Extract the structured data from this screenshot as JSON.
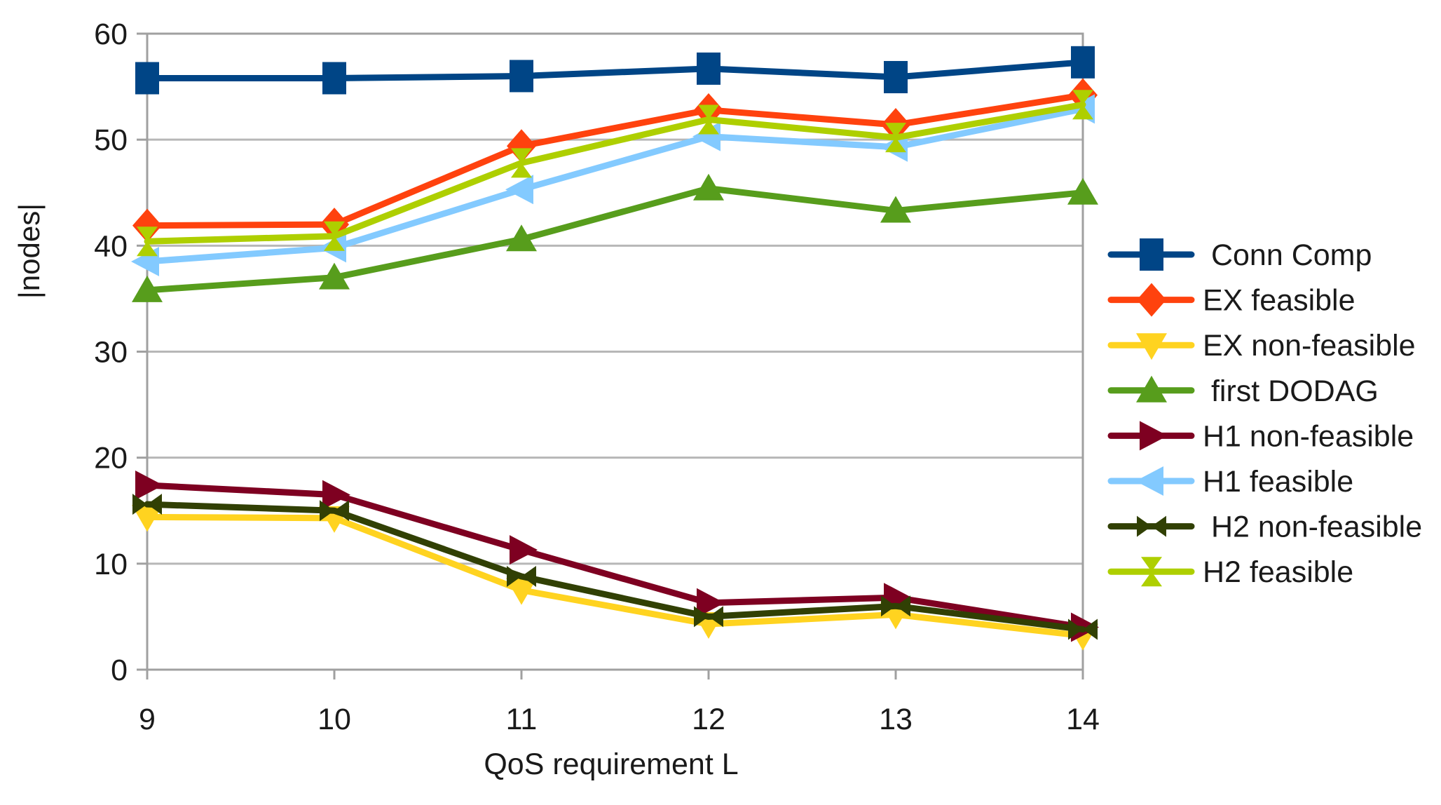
{
  "chart_data": {
    "type": "line",
    "title": "",
    "xlabel": "QoS requirement L",
    "ylabel": "|nodes|",
    "x": [
      9,
      10,
      11,
      12,
      13,
      14
    ],
    "x_tick_labels": [
      "9",
      "10",
      "11",
      "12",
      "13",
      "14"
    ],
    "y_ticks": [
      0,
      10,
      20,
      30,
      40,
      50,
      60
    ],
    "xlim": [
      9,
      14
    ],
    "ylim": [
      0,
      60
    ],
    "grid": "horizontal",
    "legend_position": "right",
    "series": [
      {
        "name": " Conn Comp",
        "color": "#004586",
        "marker": "square",
        "values": [
          55.8,
          55.8,
          56.0,
          56.7,
          55.9,
          57.3
        ]
      },
      {
        "name": "EX feasible",
        "color": "#FF420E",
        "marker": "diamond",
        "values": [
          41.9,
          42.0,
          49.4,
          52.8,
          51.4,
          54.2
        ]
      },
      {
        "name": "EX non-feasible",
        "color": "#FFD320",
        "marker": "triangle-down",
        "values": [
          14.4,
          14.3,
          7.5,
          4.3,
          5.2,
          3.2
        ]
      },
      {
        "name": " first DODAG",
        "color": "#579D1C",
        "marker": "triangle-up",
        "values": [
          35.8,
          37.0,
          40.6,
          45.4,
          43.3,
          45.0
        ]
      },
      {
        "name": "H1 non-feasible",
        "color": "#7E0021",
        "marker": "triangle-right",
        "values": [
          17.4,
          16.5,
          11.3,
          6.3,
          6.8,
          4.0
        ]
      },
      {
        "name": "H1 feasible",
        "color": "#83CAFF",
        "marker": "triangle-left",
        "values": [
          38.5,
          39.8,
          45.3,
          50.3,
          49.3,
          52.9
        ]
      },
      {
        "name": " H2 non-feasible",
        "color": "#314004",
        "marker": "bowtie",
        "values": [
          15.6,
          15.0,
          8.8,
          5.0,
          6.0,
          3.8
        ]
      },
      {
        "name": "H2 feasible",
        "color": "#AECF00",
        "marker": "sandglass",
        "values": [
          40.4,
          40.9,
          47.8,
          51.9,
          50.2,
          53.3
        ]
      }
    ],
    "style": {
      "grid_color": "#b7b7b7",
      "axis_color": "#a0a0a0",
      "text_color": "#1a1a1a",
      "background": "#ffffff"
    }
  }
}
